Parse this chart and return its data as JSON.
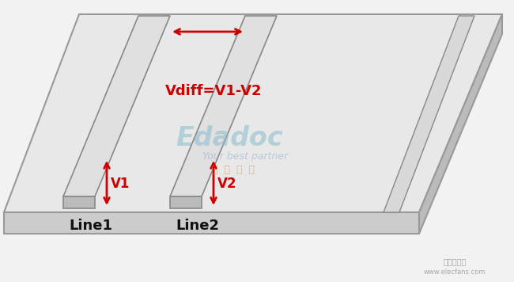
{
  "bg_color": "#f2f2f2",
  "board_top_color": "#e8e8e8",
  "board_front_color": "#cccccc",
  "board_right_color": "#bbbbbb",
  "board_edge_color": "#999999",
  "trace_top_color": "#e0e0e0",
  "trace_front_color": "#bbbbbb",
  "trace_side_color": "#aaaaaa",
  "trace_edge_color": "#888888",
  "arrow_color": "#cc0000",
  "text_color_black": "#111111",
  "text_color_red": "#cc0000",
  "label_line1": "Line1",
  "label_line2": "Line2",
  "label_vdiff": "Vdiff=V1-V2",
  "label_v1": "V1",
  "label_v2": "V2",
  "watermark_text1": "Edadoc",
  "watermark_text2": "Your best partner",
  "watermark_text3": "一  博  科  技",
  "footer_text": "电子发烧网",
  "footer_url": "www.elecfans.com",
  "skew": 95
}
